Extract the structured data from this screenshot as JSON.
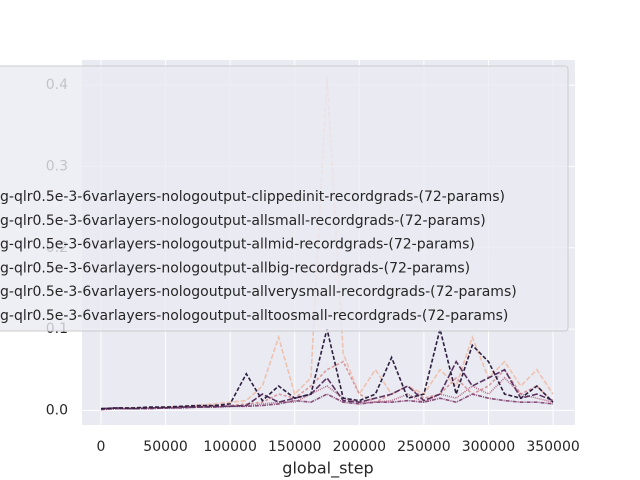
{
  "chart_data": {
    "type": "line",
    "xlabel": "global_step",
    "x": [
      0,
      12500,
      25000,
      37500,
      50000,
      62500,
      75000,
      87500,
      100000,
      112500,
      125000,
      137500,
      150000,
      162500,
      175000,
      187500,
      200000,
      212500,
      225000,
      237500,
      250000,
      262500,
      275000,
      287500,
      300000,
      312500,
      325000,
      337500,
      350000
    ],
    "series": [
      {
        "name": "g-qlr0.5e-3-6varlayers-nologoutput-clippedinit-recordgrads-(72-params)",
        "color": "#eec2b0",
        "dash": "5,2",
        "values": [
          0.002,
          0.002,
          0.003,
          0.003,
          0.004,
          0.005,
          0.006,
          0.008,
          0.01,
          0.012,
          0.03,
          0.09,
          0.02,
          0.04,
          0.41,
          0.07,
          0.02,
          0.05,
          0.02,
          0.03,
          0.02,
          0.05,
          0.03,
          0.09,
          0.04,
          0.06,
          0.03,
          0.05,
          0.02
        ]
      },
      {
        "name": "g-qlr0.5e-3-6varlayers-nologoutput-allsmall-recordgrads-(72-params)",
        "color": "#d99a9e",
        "dash": "3,2",
        "values": [
          0.001,
          0.002,
          0.002,
          0.003,
          0.003,
          0.004,
          0.005,
          0.005,
          0.006,
          0.008,
          0.01,
          0.02,
          0.015,
          0.03,
          0.05,
          0.06,
          0.02,
          0.01,
          0.02,
          0.03,
          0.015,
          0.02,
          0.04,
          0.02,
          0.03,
          0.05,
          0.02,
          0.03,
          0.01
        ]
      },
      {
        "name": "g-qlr0.5e-3-6varlayers-nologoutput-allmid-recordgrads-(72-params)",
        "color": "#b8718c",
        "dash": "1,1",
        "values": [
          0.002,
          0.002,
          0.002,
          0.003,
          0.003,
          0.003,
          0.004,
          0.004,
          0.005,
          0.006,
          0.008,
          0.01,
          0.01,
          0.02,
          0.03,
          0.015,
          0.01,
          0.01,
          0.012,
          0.02,
          0.01,
          0.02,
          0.015,
          0.03,
          0.02,
          0.04,
          0.02,
          0.015,
          0.01
        ]
      },
      {
        "name": "g-qlr0.5e-3-6varlayers-nologoutput-allbig-recordgrads-(72-params)",
        "color": "#8a4f7a",
        "dash": "4,1,1,1",
        "values": [
          0.001,
          0.002,
          0.002,
          0.002,
          0.003,
          0.003,
          0.004,
          0.004,
          0.005,
          0.005,
          0.006,
          0.008,
          0.012,
          0.01,
          0.02,
          0.01,
          0.008,
          0.01,
          0.01,
          0.012,
          0.01,
          0.015,
          0.01,
          0.02,
          0.015,
          0.012,
          0.01,
          0.01,
          0.008
        ]
      },
      {
        "name": "g-qlr0.5e-3-6varlayers-nologoutput-allverysmall-recordgrads-(72-params)",
        "color": "#5a3361",
        "dash": "6,2",
        "values": [
          0.002,
          0.003,
          0.002,
          0.003,
          0.003,
          0.004,
          0.004,
          0.005,
          0.005,
          0.006,
          0.02,
          0.01,
          0.015,
          0.02,
          0.04,
          0.012,
          0.01,
          0.015,
          0.02,
          0.03,
          0.012,
          0.02,
          0.06,
          0.03,
          0.04,
          0.05,
          0.015,
          0.02,
          0.012
        ]
      },
      {
        "name": "g-qlr0.5e-3-6varlayers-nologoutput-alltoosmall-recordgrads-(72-params)",
        "color": "#2d1e3e",
        "dash": "4,2",
        "values": [
          0.002,
          0.003,
          0.003,
          0.004,
          0.004,
          0.005,
          0.006,
          0.006,
          0.008,
          0.045,
          0.012,
          0.03,
          0.015,
          0.02,
          0.1,
          0.015,
          0.012,
          0.02,
          0.065,
          0.015,
          0.02,
          0.1,
          0.02,
          0.08,
          0.06,
          0.02,
          0.015,
          0.03,
          0.01
        ]
      }
    ],
    "xlim": [
      -14700,
      367000
    ],
    "ylim": [
      -0.018,
      0.431
    ],
    "xticks": [
      0,
      50000,
      100000,
      150000,
      200000,
      250000,
      300000,
      350000
    ],
    "yticks": [
      {
        "value": 0,
        "label": "0.0"
      },
      0.1,
      0.2,
      0.3,
      0.4
    ],
    "grid": true
  }
}
